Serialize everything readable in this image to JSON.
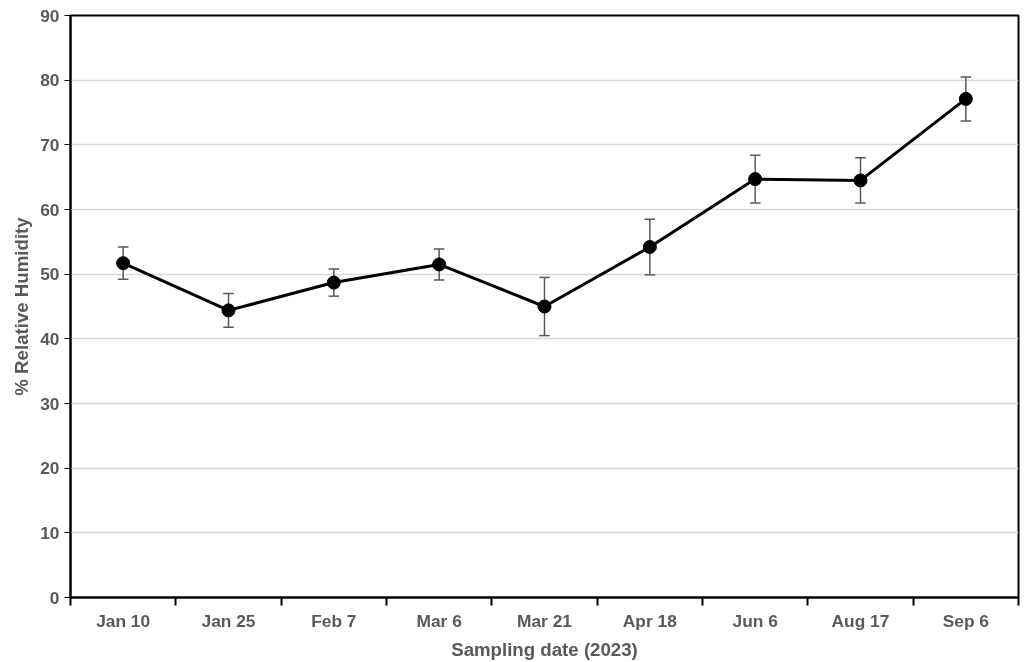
{
  "chart_data": {
    "type": "line",
    "xlabel": "Sampling date (2023)",
    "ylabel": "% Relative Humidity",
    "categories": [
      "Jan 10",
      "Jan 25",
      "Feb 7",
      "Mar 6",
      "Mar 21",
      "Apr 18",
      "Jun 6",
      "Aug 17",
      "Sep 6"
    ],
    "series": [
      {
        "color": "#000000",
        "values": [
          51.7,
          44.4,
          48.7,
          51.5,
          45.0,
          54.2,
          64.7,
          64.5,
          77.1
        ],
        "errors": [
          2.5,
          2.6,
          2.1,
          2.4,
          4.5,
          4.3,
          3.7,
          3.5,
          3.4
        ]
      }
    ],
    "ylim": [
      0,
      90
    ],
    "yticks": [
      0,
      10,
      20,
      30,
      40,
      50,
      60,
      70,
      80,
      90
    ],
    "grid": "y",
    "marker": "circle",
    "line_style": "solid"
  }
}
